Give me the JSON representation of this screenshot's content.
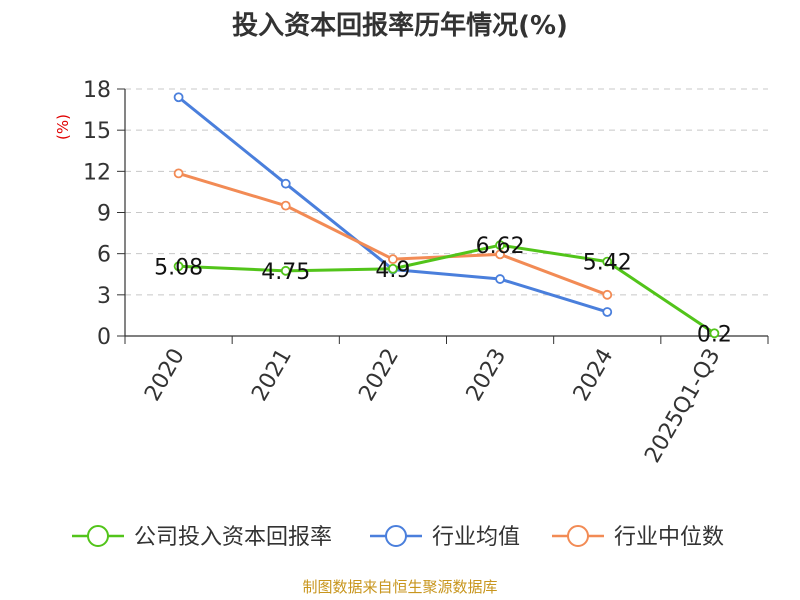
{
  "chart_data": {
    "type": "line",
    "title": "投入资本回报率历年情况(%)",
    "ylabel": "(%)",
    "categories": [
      "2020",
      "2021",
      "2022",
      "2023",
      "2024",
      "2025Q1-Q3"
    ],
    "yticks": [
      "0",
      "3",
      "6",
      "9",
      "12",
      "15",
      "18"
    ],
    "ylim": [
      0,
      18
    ],
    "grid": true,
    "legend_position": "bottom",
    "series": [
      {
        "name": "公司投入资本回报率",
        "color": "#52c41a",
        "values": [
          5.08,
          4.75,
          4.9,
          6.62,
          5.42,
          0.2
        ],
        "labels": [
          "5.08",
          "4.75",
          "4.9",
          "6.62",
          "5.42",
          "0.2"
        ]
      },
      {
        "name": "行业均值",
        "color": "#4a7fdc",
        "values": [
          17.4,
          11.1,
          4.85,
          4.15,
          1.75,
          null
        ],
        "labels": []
      },
      {
        "name": "行业中位数",
        "color": "#f28b55",
        "values": [
          11.85,
          9.5,
          5.6,
          5.95,
          3.0,
          null
        ],
        "labels": []
      }
    ]
  },
  "source": "制图数据来自恒生聚源数据库"
}
